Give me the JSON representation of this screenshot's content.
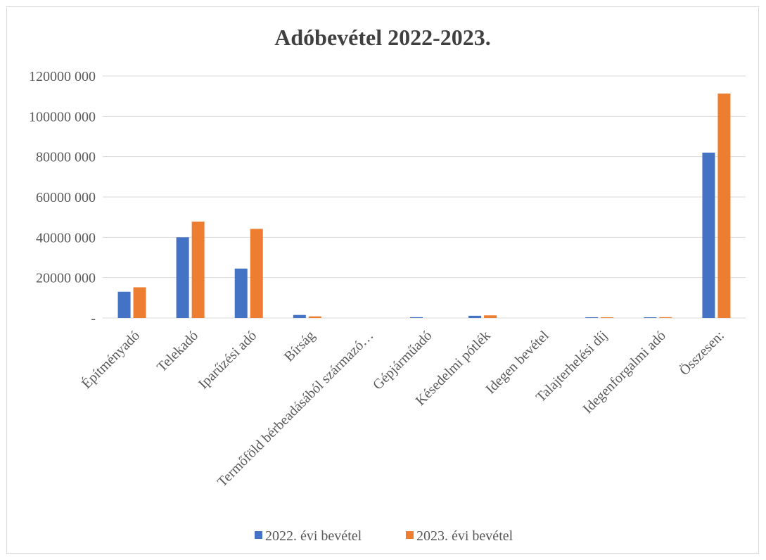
{
  "chart_data": {
    "type": "bar",
    "title": "Adóbevétel 2022-2023.",
    "xlabel": "",
    "ylabel": "",
    "categories": [
      "Építményadó",
      "Telekadó",
      "Iparűzési adó",
      "Bírság",
      "Termőföld bérbeadásából származó…",
      "Gépjárműadó",
      "Késedelmi pótlék",
      "Idegen bevétel",
      "Talajterhelési díj",
      "Idegenforgalmi adó",
      "Összesen:"
    ],
    "series": [
      {
        "name": "2022. évi bevétel",
        "color": "#4472c4",
        "values": [
          13000000,
          40000000,
          24500000,
          1500000,
          0,
          400000,
          1100000,
          0,
          300000,
          100000,
          82000000
        ]
      },
      {
        "name": "2023. évi bevétel",
        "color": "#ed7d31",
        "values": [
          15200000,
          47800000,
          44200000,
          800000,
          0,
          0,
          1300000,
          0,
          200000,
          400000,
          111300000
        ]
      }
    ],
    "ylim": [
      0,
      120000000
    ],
    "yticks": [
      {
        "value": 0,
        "label": "-"
      },
      {
        "value": 20000000,
        "label": "20000 000"
      },
      {
        "value": 40000000,
        "label": "40000 000"
      },
      {
        "value": 60000000,
        "label": "60000 000"
      },
      {
        "value": 80000000,
        "label": "80000 000"
      },
      {
        "value": 100000000,
        "label": "100000 000"
      },
      {
        "value": 120000000,
        "label": "120000 000"
      }
    ],
    "grid": true,
    "legend_position": "bottom",
    "gridline_color": "#d9d9d9"
  }
}
